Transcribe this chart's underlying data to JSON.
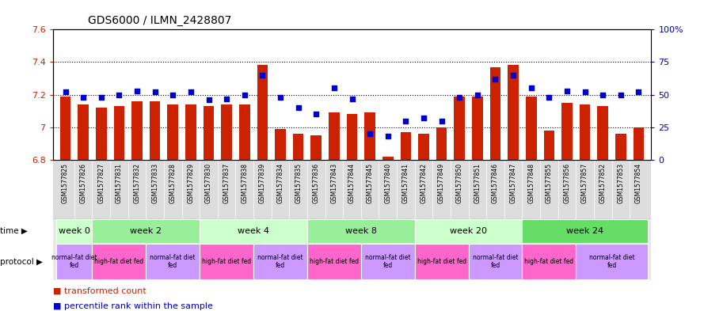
{
  "title": "GDS6000 / ILMN_2428807",
  "samples": [
    "GSM1577825",
    "GSM1577826",
    "GSM1577827",
    "GSM1577831",
    "GSM1577832",
    "GSM1577833",
    "GSM1577828",
    "GSM1577829",
    "GSM1577830",
    "GSM1577837",
    "GSM1577838",
    "GSM1577839",
    "GSM1577834",
    "GSM1577835",
    "GSM1577836",
    "GSM1577843",
    "GSM1577844",
    "GSM1577845",
    "GSM1577840",
    "GSM1577841",
    "GSM1577842",
    "GSM1577849",
    "GSM1577850",
    "GSM1577851",
    "GSM1577846",
    "GSM1577847",
    "GSM1577848",
    "GSM1577855",
    "GSM1577856",
    "GSM1577857",
    "GSM1577852",
    "GSM1577853",
    "GSM1577854"
  ],
  "bar_values": [
    7.19,
    7.14,
    7.12,
    7.13,
    7.16,
    7.16,
    7.14,
    7.14,
    7.13,
    7.14,
    7.14,
    7.38,
    6.99,
    6.96,
    6.95,
    7.09,
    7.08,
    7.09,
    6.82,
    6.97,
    6.96,
    7.0,
    7.19,
    7.19,
    7.37,
    7.38,
    7.19,
    6.98,
    7.15,
    7.14,
    7.13,
    6.96,
    7.0
  ],
  "dot_values": [
    52,
    48,
    48,
    50,
    53,
    52,
    50,
    52,
    46,
    47,
    50,
    65,
    48,
    40,
    35,
    55,
    47,
    20,
    18,
    30,
    32,
    30,
    48,
    50,
    62,
    65,
    55,
    48,
    53,
    52,
    50,
    50,
    52
  ],
  "bar_color": "#CC2200",
  "dot_color": "#0000CC",
  "ylim_left": [
    6.8,
    7.6
  ],
  "ylim_right": [
    0,
    100
  ],
  "yticks_left": [
    6.8,
    7.0,
    7.2,
    7.4,
    7.6
  ],
  "ytick_labels_left": [
    "6.8",
    "7",
    "7.2",
    "7.4",
    "7.6"
  ],
  "yticks_right": [
    0,
    25,
    50,
    75,
    100
  ],
  "ytick_labels_right": [
    "0",
    "25",
    "50",
    "75",
    "100%"
  ],
  "dotted_lines": [
    7.0,
    7.2,
    7.4
  ],
  "time_groups": [
    {
      "label": "week 0",
      "start": 0,
      "end": 2,
      "color": "#ccffcc"
    },
    {
      "label": "week 2",
      "start": 2,
      "end": 8,
      "color": "#99ee99"
    },
    {
      "label": "week 4",
      "start": 8,
      "end": 14,
      "color": "#ccffcc"
    },
    {
      "label": "week 8",
      "start": 14,
      "end": 20,
      "color": "#99ee99"
    },
    {
      "label": "week 20",
      "start": 20,
      "end": 26,
      "color": "#ccffcc"
    },
    {
      "label": "week 24",
      "start": 26,
      "end": 33,
      "color": "#66dd66"
    }
  ],
  "protocol_groups": [
    {
      "label": "normal-fat diet\nfed",
      "start": 0,
      "end": 2,
      "color": "#cc99ff"
    },
    {
      "label": "high-fat diet fed",
      "start": 2,
      "end": 5,
      "color": "#ff66cc"
    },
    {
      "label": "normal-fat diet\nfed",
      "start": 5,
      "end": 8,
      "color": "#cc99ff"
    },
    {
      "label": "high-fat diet fed",
      "start": 8,
      "end": 11,
      "color": "#ff66cc"
    },
    {
      "label": "normal-fat diet\nfed",
      "start": 11,
      "end": 14,
      "color": "#cc99ff"
    },
    {
      "label": "high-fat diet fed",
      "start": 14,
      "end": 17,
      "color": "#ff66cc"
    },
    {
      "label": "normal-fat diet\nfed",
      "start": 17,
      "end": 20,
      "color": "#cc99ff"
    },
    {
      "label": "high-fat diet fed",
      "start": 20,
      "end": 23,
      "color": "#ff66cc"
    },
    {
      "label": "normal-fat diet\nfed",
      "start": 23,
      "end": 26,
      "color": "#cc99ff"
    },
    {
      "label": "high-fat diet fed",
      "start": 26,
      "end": 29,
      "color": "#ff66cc"
    },
    {
      "label": "normal-fat diet\nfed",
      "start": 29,
      "end": 33,
      "color": "#cc99ff"
    }
  ],
  "background_color": "#ffffff",
  "bar_bottom": 6.8,
  "xticklabel_bg": "#dddddd",
  "time_label_bg": "#e8e8e8",
  "protocol_label_bg": "#e8e8e8"
}
